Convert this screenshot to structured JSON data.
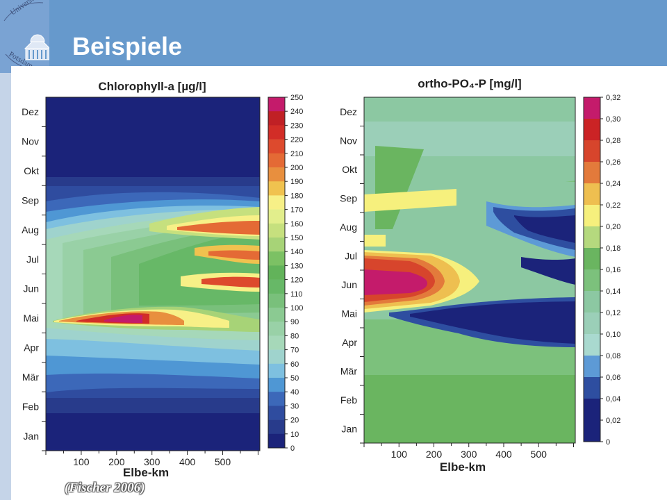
{
  "slide": {
    "title": "Beispiele",
    "source": "(Fischer 2006)",
    "logo_text": [
      "Universität",
      "Potsdam"
    ],
    "colors": {
      "header": "#6699cc",
      "logo_block": "#7aa3d3",
      "side_strip": "#c5d4e8"
    }
  },
  "chart_data": [
    {
      "type": "heatmap",
      "title": "Chlorophyll-a  [µg/l]",
      "xlabel": "Elbe-km",
      "ylabel": "",
      "x_ticks": [
        100,
        200,
        300,
        400,
        500
      ],
      "xlim": [
        0,
        605
      ],
      "y_categories": [
        "Jan",
        "Feb",
        "Mär",
        "Apr",
        "Mai",
        "Jun",
        "Jul",
        "Aug",
        "Sep",
        "Okt",
        "Nov",
        "Dez"
      ],
      "colorbar": {
        "labels": [
          "250",
          "240",
          "230",
          "220",
          "210",
          "200",
          "190",
          "180",
          "170",
          "160",
          "150",
          "140",
          "130",
          "120",
          "110",
          "100",
          "90",
          "80",
          "70",
          "60",
          "50",
          "40",
          "30",
          "20",
          "10",
          "0"
        ],
        "colors": [
          "#c41b6b",
          "#c02025",
          "#d22d27",
          "#dd4a2d",
          "#e46a35",
          "#e88f3e",
          "#f0c24f",
          "#f7f087",
          "#e2ee8c",
          "#c6e07e",
          "#a7d377",
          "#7cc164",
          "#62b35a",
          "#67b867",
          "#79c07b",
          "#8bca92",
          "#99d1a7",
          "#a6d8b9",
          "#9fd3cd",
          "#7ec0e0",
          "#4f97d4",
          "#3c68b9",
          "#2f4c9f",
          "#283b8b",
          "#1b237a"
        ]
      }
    },
    {
      "type": "heatmap",
      "title": "ortho-PO₄-P [mg/l]",
      "xlabel": "Elbe-km",
      "ylabel": "",
      "x_ticks": [
        100,
        200,
        300,
        400,
        500
      ],
      "xlim": [
        0,
        605
      ],
      "y_categories": [
        "Jan",
        "Feb",
        "Mär",
        "Apr",
        "Mai",
        "Jun",
        "Jul",
        "Aug",
        "Sep",
        "Okt",
        "Nov",
        "Dez"
      ],
      "colorbar": {
        "labels": [
          "0,32",
          "0,30",
          "0,28",
          "0,26",
          "0,24",
          "0,22",
          "0,20",
          "0,18",
          "0,16",
          "0,14",
          "0,12",
          "0,10",
          "0,08",
          "0,06",
          "0,04",
          "0,02",
          "0"
        ],
        "colors": [
          "#c41b6b",
          "#cb2325",
          "#d7452c",
          "#e37a3b",
          "#eebf50",
          "#f6f07d",
          "#b5d97e",
          "#6ab560",
          "#7cc17c",
          "#8cc8a2",
          "#9bcfb8",
          "#a9d9cf",
          "#5d9ad6",
          "#2e4ea0",
          "#1b237a",
          "#1b237a"
        ]
      }
    }
  ]
}
